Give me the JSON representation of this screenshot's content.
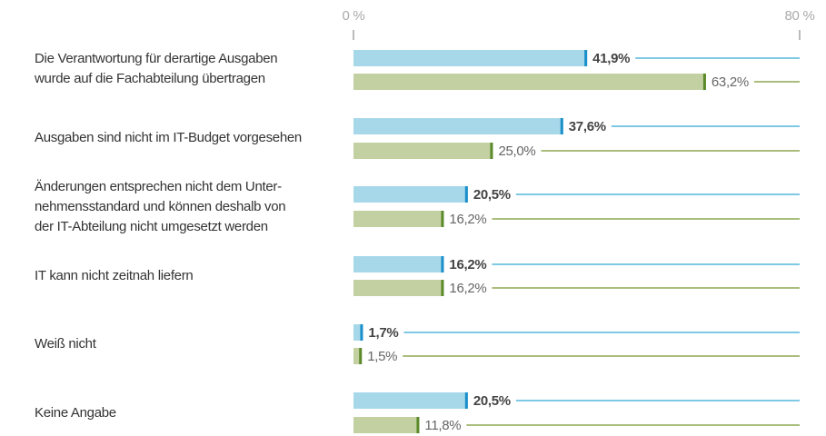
{
  "chart_data": {
    "type": "bar",
    "categories": [
      "Die Verantwortung für derartige Ausgaben\nwurde auf die Fachabteilung übertragen",
      "Ausgaben sind nicht im IT-Budget vorgesehen",
      "Änderungen entsprechen nicht dem Unter-\nnehmensstandard und können deshalb von\nder IT-Abteilung nicht umgesetzt werden",
      "IT kann nicht zeitnah liefern",
      "Weiß nicht",
      "Keine Angabe"
    ],
    "series": [
      {
        "color": "#a6d8ea",
        "values": [
          41.9,
          37.6,
          20.5,
          16.2,
          1.7,
          20.5
        ],
        "value_labels": [
          "41,9%",
          "37,6%",
          "20,5%",
          "16,2%",
          "1,7%",
          "20,5%"
        ]
      },
      {
        "color": "#c3d1a2",
        "values": [
          63.2,
          25.0,
          16.2,
          16.2,
          1.5,
          11.8
        ],
        "value_labels": [
          "63,2%",
          "25,0%",
          "16,2%",
          "16,2%",
          "1,5%",
          "11,8%"
        ]
      }
    ],
    "xlim": [
      0,
      80
    ],
    "xticks": [
      {
        "value": 0,
        "label": "0 %"
      },
      {
        "value": 80,
        "label": "80 %"
      }
    ]
  }
}
